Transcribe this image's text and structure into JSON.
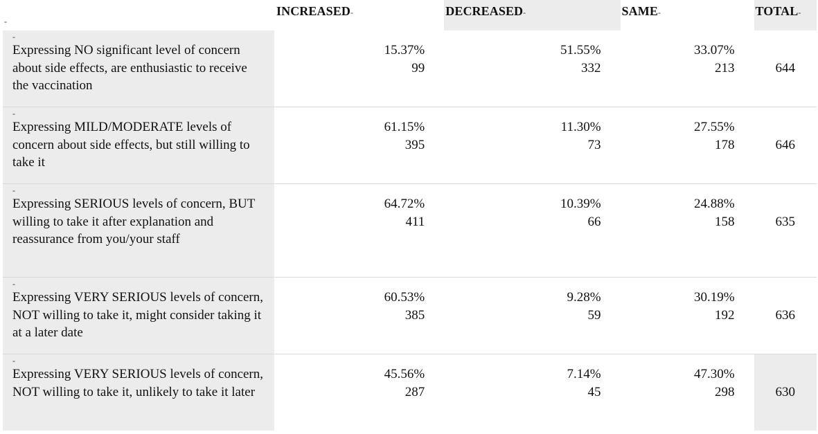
{
  "table": {
    "header": {
      "stub_mark": "-",
      "increased": "INCREASED",
      "decreased": "DECREASED",
      "same": "SAME",
      "total": "TOTAL",
      "dash": "-"
    },
    "rows": [
      {
        "mark": "-",
        "label": "Expressing NO significant level of concern about side effects, are enthusiastic to receive the vaccination",
        "increased_pct": "15.37%",
        "increased_n": "99",
        "decreased_pct": "51.55%",
        "decreased_n": "332",
        "same_pct": "33.07%",
        "same_n": "213",
        "total": "644"
      },
      {
        "mark": "-",
        "label": "Expressing MILD/MODERATE levels of concern about side effects, but still willing to take it",
        "increased_pct": "61.15%",
        "increased_n": "395",
        "decreased_pct": "11.30%",
        "decreased_n": "73",
        "same_pct": "27.55%",
        "same_n": "178",
        "total": "646"
      },
      {
        "mark": "-",
        "label": "Expressing SERIOUS levels of concern, BUT willing to take it after explanation and reassurance from you/your staff",
        "increased_pct": "64.72%",
        "increased_n": "411",
        "decreased_pct": "10.39%",
        "decreased_n": "66",
        "same_pct": "24.88%",
        "same_n": "158",
        "total": "635"
      },
      {
        "mark": "-",
        "label": "Expressing VERY SERIOUS levels of concern, NOT willing to take it, might consider taking it at a later date",
        "increased_pct": "60.53%",
        "increased_n": "385",
        "decreased_pct": "9.28%",
        "decreased_n": "59",
        "same_pct": "30.19%",
        "same_n": "192",
        "total": "636"
      },
      {
        "mark": "-",
        "label": "Expressing VERY SERIOUS levels of concern, NOT willing to take it, unlikely to take it later",
        "increased_pct": "45.56%",
        "increased_n": "287",
        "decreased_pct": "7.14%",
        "decreased_n": "45",
        "same_pct": "47.30%",
        "same_n": "298",
        "total": "630"
      }
    ]
  }
}
